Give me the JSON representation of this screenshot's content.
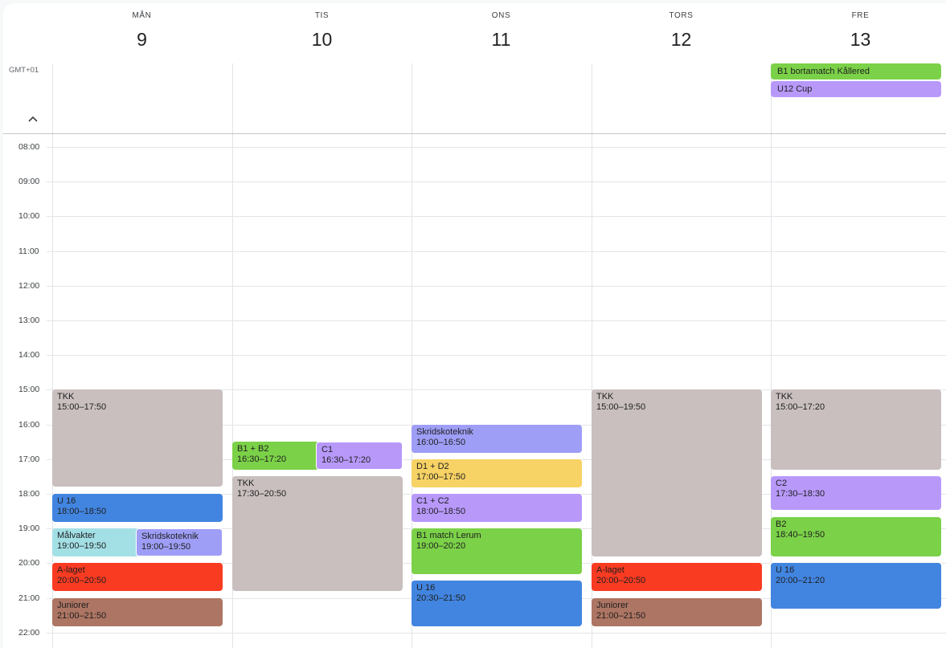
{
  "timezone": "GMT+01",
  "days": [
    {
      "name": "MÅN",
      "num": "9"
    },
    {
      "name": "TIS",
      "num": "10"
    },
    {
      "name": "ONS",
      "num": "11"
    },
    {
      "name": "TORS",
      "num": "12"
    },
    {
      "name": "FRE",
      "num": "13"
    }
  ],
  "hours": [
    "08:00",
    "09:00",
    "10:00",
    "11:00",
    "12:00",
    "13:00",
    "14:00",
    "15:00",
    "16:00",
    "17:00",
    "18:00",
    "19:00",
    "20:00",
    "21:00",
    "22:00"
  ],
  "colors": {
    "gray": "#c9bfbf",
    "blue": "#4285e0",
    "cyan": "#a3e0e6",
    "lavender": "#9e9ef7",
    "red": "#f93b22",
    "brown": "#ad7563",
    "green": "#7bd148",
    "purple": "#b899fa",
    "yellow": "#f7d264"
  },
  "allday_events": [
    {
      "title": "B1 bortamatch Kållered",
      "day": 4,
      "color": "#7bd148"
    },
    {
      "title": "U12 Cup",
      "day": 4,
      "color": "#b899fa"
    }
  ],
  "events": [
    {
      "title": "TKK",
      "time": "15:00–17:50",
      "day": 0,
      "start": "15:00",
      "end": "17:50",
      "color": "#c9bfbf",
      "col": 0,
      "cols": 1
    },
    {
      "title": "U 16",
      "time": "18:00–18:50",
      "day": 0,
      "start": "18:00",
      "end": "18:50",
      "color": "#4285e0",
      "col": 0,
      "cols": 1
    },
    {
      "title": "Målvakter",
      "time": "19:00–19:50",
      "day": 0,
      "start": "19:00",
      "end": "19:50",
      "color": "#a3e0e6",
      "col": 0,
      "cols": 2
    },
    {
      "title": "Skridskoteknik",
      "time": "19:00–19:50",
      "day": 0,
      "start": "19:00",
      "end": "19:50",
      "color": "#9e9ef7",
      "col": 1,
      "cols": 2
    },
    {
      "title": "A-laget",
      "time": "20:00–20:50",
      "day": 0,
      "start": "20:00",
      "end": "20:50",
      "color": "#f93b22",
      "col": 0,
      "cols": 1
    },
    {
      "title": "Juniorer",
      "time": "21:00–21:50",
      "day": 0,
      "start": "21:00",
      "end": "21:50",
      "color": "#ad7563",
      "col": 0,
      "cols": 1
    },
    {
      "title": "B1 + B2",
      "time": "16:30–17:20",
      "day": 1,
      "start": "16:30",
      "end": "17:20",
      "color": "#7bd148",
      "col": 0,
      "cols": 2
    },
    {
      "title": "C1",
      "time": "16:30–17:20",
      "day": 1,
      "start": "16:30",
      "end": "17:20",
      "color": "#b899fa",
      "col": 1,
      "cols": 2
    },
    {
      "title": "TKK",
      "time": "17:30–20:50",
      "day": 1,
      "start": "17:30",
      "end": "20:50",
      "color": "#c9bfbf",
      "col": 0,
      "cols": 1
    },
    {
      "title": "Skridskoteknik",
      "time": "16:00–16:50",
      "day": 2,
      "start": "16:00",
      "end": "16:50",
      "color": "#9e9ef7",
      "col": 0,
      "cols": 1
    },
    {
      "title": "D1 + D2",
      "time": "17:00–17:50",
      "day": 2,
      "start": "17:00",
      "end": "17:50",
      "color": "#f7d264",
      "col": 0,
      "cols": 1
    },
    {
      "title": "C1 + C2",
      "time": "18:00–18:50",
      "day": 2,
      "start": "18:00",
      "end": "18:50",
      "color": "#b899fa",
      "col": 0,
      "cols": 1
    },
    {
      "title": "B1 match Lerum",
      "time": "19:00–20:20",
      "day": 2,
      "start": "19:00",
      "end": "20:20",
      "color": "#7bd148",
      "col": 0,
      "cols": 1
    },
    {
      "title": "U 16",
      "time": "20:30–21:50",
      "day": 2,
      "start": "20:30",
      "end": "21:50",
      "color": "#4285e0",
      "col": 0,
      "cols": 1
    },
    {
      "title": "TKK",
      "time": "15:00–19:50",
      "day": 3,
      "start": "15:00",
      "end": "19:50",
      "color": "#c9bfbf",
      "col": 0,
      "cols": 1
    },
    {
      "title": "A-laget",
      "time": "20:00–20:50",
      "day": 3,
      "start": "20:00",
      "end": "20:50",
      "color": "#f93b22",
      "col": 0,
      "cols": 1
    },
    {
      "title": "Juniorer",
      "time": "21:00–21:50",
      "day": 3,
      "start": "21:00",
      "end": "21:50",
      "color": "#ad7563",
      "col": 0,
      "cols": 1
    },
    {
      "title": "TKK",
      "time": "15:00–17:20",
      "day": 4,
      "start": "15:00",
      "end": "17:20",
      "color": "#c9bfbf",
      "col": 0,
      "cols": 1
    },
    {
      "title": "C2",
      "time": "17:30–18:30",
      "day": 4,
      "start": "17:30",
      "end": "18:30",
      "color": "#b899fa",
      "col": 0,
      "cols": 1
    },
    {
      "title": "B2",
      "time": "18:40–19:50",
      "day": 4,
      "start": "18:40",
      "end": "19:50",
      "color": "#7bd148",
      "col": 0,
      "cols": 1
    },
    {
      "title": "U 16",
      "time": "20:00–21:20",
      "day": 4,
      "start": "20:00",
      "end": "21:20",
      "color": "#4285e0",
      "col": 0,
      "cols": 1
    }
  ]
}
